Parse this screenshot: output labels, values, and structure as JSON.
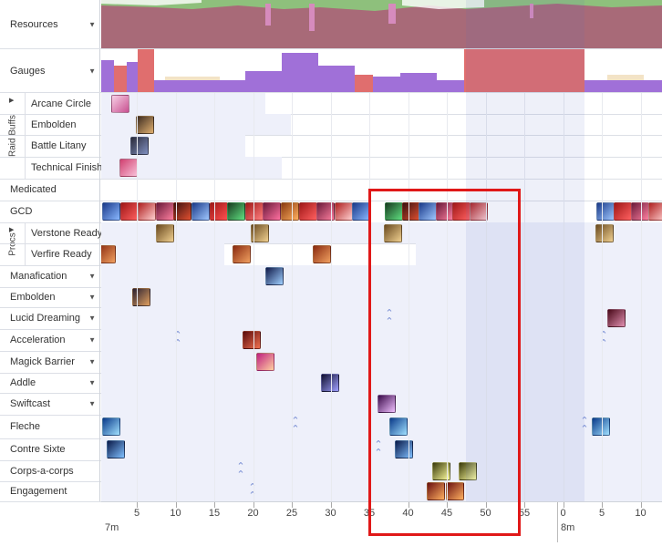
{
  "rows": {
    "resources": {
      "label": "Resources"
    },
    "gauges": {
      "label": "Gauges"
    },
    "raid_buffs_group": "Raid Buffs",
    "arcane_circle": "Arcane Circle",
    "embolden_buff": "Embolden",
    "battle_litany": "Battle Litany",
    "technical_finish": "Technical Finish",
    "medicated": "Medicated",
    "gcd": "GCD",
    "procs_group": "Procs",
    "verstone_ready": "Verstone Ready",
    "verfire_ready": "Verfire Ready",
    "manafication": "Manafication",
    "embolden": "Embolden",
    "lucid_dreaming": "Lucid Dreaming",
    "acceleration": "Acceleration",
    "magick_barrier": "Magick Barrier",
    "addle": "Addle",
    "swiftcast": "Swiftcast",
    "fleche": "Fleche",
    "contre_sixte": "Contre Sixte",
    "corps_a_corps": "Corps-a-corps",
    "engagement": "Engagement"
  },
  "timeline": {
    "ticks": [
      "5",
      "10",
      "15",
      "20",
      "25",
      "30",
      "35",
      "40",
      "45",
      "50",
      "55",
      "0",
      "5",
      "10"
    ],
    "minute_labels": {
      "start": "7m",
      "next": "8m"
    }
  },
  "colors": {
    "resource_fill": "#a86a78",
    "resource_top": "#8ec07c",
    "resource_pink": "#d68bbd",
    "gauge_purple": "#a070d8",
    "gauge_red": "#e06e6e",
    "gauge_pale": "#f3e3c6",
    "highlight_box": "#e01818",
    "lane_shade": "#eef0fa",
    "cast_marker": "#7a8fd4"
  }
}
